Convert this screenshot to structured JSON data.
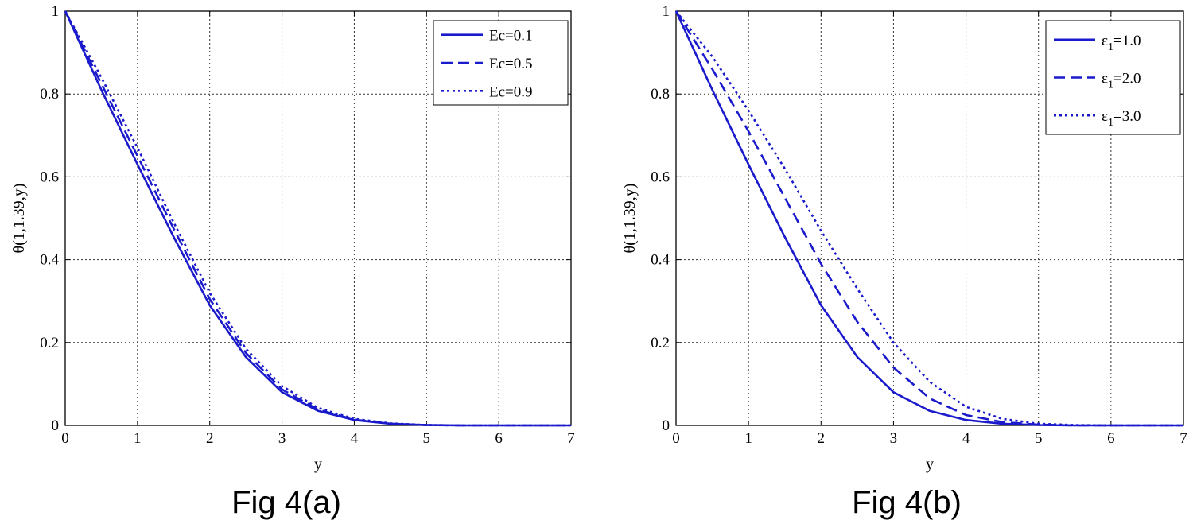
{
  "chart_data": [
    {
      "type": "line",
      "caption": "Fig 4(a)",
      "xlabel": "y",
      "ylabel": "θ(1,1.39,y)",
      "xlim": [
        0,
        7
      ],
      "ylim": [
        0,
        1
      ],
      "xticks": [
        "0",
        "1",
        "2",
        "3",
        "4",
        "5",
        "6",
        "7"
      ],
      "yticks": [
        "0",
        "0.2",
        "0.4",
        "0.6",
        "0.8",
        "1"
      ],
      "grid": true,
      "legend_position": "top-right",
      "color": "#1a1acc",
      "x": [
        0,
        0.5,
        1,
        1.5,
        2,
        2.5,
        3,
        3.5,
        4,
        4.5,
        5,
        5.5,
        6,
        7
      ],
      "series": [
        {
          "name": "Ec=0.1",
          "label_main": "Ec=0.1",
          "label_sub": "",
          "label_tail": "",
          "style": "solid",
          "values": [
            1.0,
            0.81,
            0.63,
            0.455,
            0.29,
            0.165,
            0.08,
            0.035,
            0.013,
            0.004,
            0.001,
            0,
            0,
            0
          ]
        },
        {
          "name": "Ec=0.5",
          "label_main": "Ec=0.5",
          "label_sub": "",
          "label_tail": "",
          "style": "dashed",
          "values": [
            1.0,
            0.825,
            0.65,
            0.475,
            0.305,
            0.175,
            0.087,
            0.038,
            0.014,
            0.004,
            0.001,
            0,
            0,
            0
          ]
        },
        {
          "name": "Ec=0.9",
          "label_main": "Ec=0.9",
          "label_sub": "",
          "label_tail": "",
          "style": "dotted",
          "values": [
            1.0,
            0.84,
            0.67,
            0.49,
            0.32,
            0.185,
            0.095,
            0.042,
            0.016,
            0.005,
            0.001,
            0,
            0,
            0
          ]
        }
      ]
    },
    {
      "type": "line",
      "caption": "Fig 4(b)",
      "xlabel": "y",
      "ylabel": "θ(1,1.39,y)",
      "xlim": [
        0,
        7
      ],
      "ylim": [
        0,
        1
      ],
      "xticks": [
        "0",
        "1",
        "2",
        "3",
        "4",
        "5",
        "6",
        "7"
      ],
      "yticks": [
        "0",
        "0.2",
        "0.4",
        "0.6",
        "0.8",
        "1"
      ],
      "grid": true,
      "legend_position": "top-right",
      "color": "#1a1acc",
      "x": [
        0,
        0.5,
        1,
        1.5,
        2,
        2.5,
        3,
        3.5,
        4,
        4.5,
        5,
        5.5,
        6,
        7
      ],
      "series": [
        {
          "name": "ε1=1.0",
          "label_main": "ε",
          "label_sub": "1",
          "label_tail": "=1.0",
          "style": "solid",
          "values": [
            1.0,
            0.81,
            0.63,
            0.455,
            0.29,
            0.165,
            0.08,
            0.035,
            0.013,
            0.004,
            0.001,
            0,
            0,
            0
          ]
        },
        {
          "name": "ε1=2.0",
          "label_main": "ε",
          "label_sub": "1",
          "label_tail": "=2.0",
          "style": "dashed",
          "values": [
            1.0,
            0.86,
            0.71,
            0.55,
            0.39,
            0.25,
            0.14,
            0.065,
            0.025,
            0.008,
            0.002,
            0,
            0,
            0
          ]
        },
        {
          "name": "ε1=3.0",
          "label_main": "ε",
          "label_sub": "1",
          "label_tail": "=3.0",
          "style": "dotted",
          "values": [
            1.0,
            0.89,
            0.76,
            0.62,
            0.47,
            0.33,
            0.2,
            0.105,
            0.045,
            0.016,
            0.004,
            0.001,
            0,
            0
          ]
        }
      ]
    }
  ]
}
